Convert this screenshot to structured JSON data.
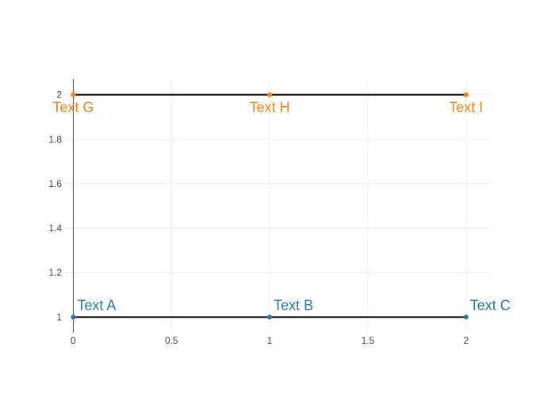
{
  "chart_data": {
    "type": "scatter",
    "title": "",
    "xlabel": "",
    "ylabel": "",
    "xlim": [
      -0.05,
      2.13
    ],
    "ylim": [
      0.93,
      2.07
    ],
    "grid": true,
    "legend": "none",
    "x_ticks": [
      {
        "value": 0,
        "label": "0"
      },
      {
        "value": 0.5,
        "label": "0.5"
      },
      {
        "value": 1,
        "label": "1"
      },
      {
        "value": 1.5,
        "label": "1.5"
      },
      {
        "value": 2,
        "label": "2"
      }
    ],
    "y_ticks": [
      {
        "value": 1,
        "label": "1"
      },
      {
        "value": 1.2,
        "label": "1.2"
      },
      {
        "value": 1.4,
        "label": "1.4"
      },
      {
        "value": 1.6,
        "label": "1.6"
      },
      {
        "value": 1.8,
        "label": "1.8"
      },
      {
        "value": 2,
        "label": "2"
      }
    ],
    "series": [
      {
        "color": "#1f77b4",
        "mode": "lines+markers+text",
        "text_position": "top right",
        "x": [
          0,
          1,
          2
        ],
        "y": [
          1,
          1,
          1
        ],
        "text": [
          "Text A",
          "Text B",
          "Text C"
        ]
      },
      {
        "color": "#ff7f0e",
        "mode": "lines+markers+text",
        "text_position": "bottom center",
        "x": [
          0,
          1,
          2
        ],
        "y": [
          2,
          2,
          2
        ],
        "text": [
          "Text G",
          "Text H",
          "Text I"
        ]
      }
    ],
    "line_color": "#000000",
    "grid_color": "#eeeeee",
    "zero_line_color": "#444444"
  }
}
